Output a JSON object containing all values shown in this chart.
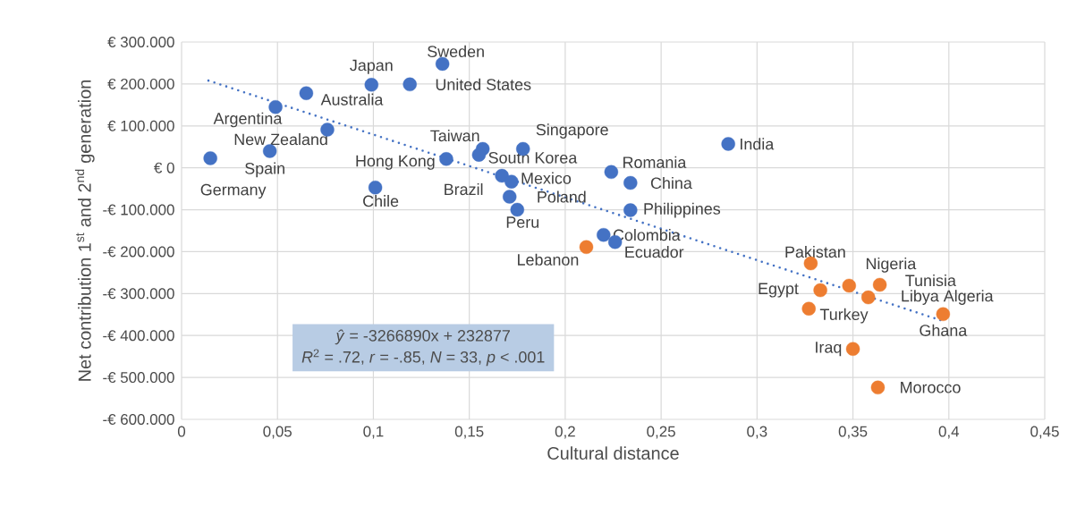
{
  "chart_data": {
    "type": "scatter",
    "xlabel": "Cultural distance",
    "ylabel": "Net contribution 1$^{st}$ and 2$^{nd}$ generation",
    "xlim": [
      0,
      0.45
    ],
    "ylim": [
      -600000,
      300000
    ],
    "xticks": [
      0,
      {
        "value": 0.05,
        "label": "0,05"
      },
      {
        "value": 0.1,
        "label": "0,1"
      },
      {
        "value": 0.15,
        "label": "0,15"
      },
      {
        "value": 0.2,
        "label": "0,2"
      },
      {
        "value": 0.25,
        "label": "0,25"
      },
      {
        "value": 0.3,
        "label": "0,3"
      },
      {
        "value": 0.35,
        "label": "0,35"
      },
      {
        "value": 0.4,
        "label": "0,4"
      },
      {
        "value": 0.45,
        "label": "0,45"
      }
    ],
    "yticks": [
      {
        "value": -600000,
        "label": "-€ 600.000"
      },
      {
        "value": -500000,
        "label": "-€ 500.000"
      },
      {
        "value": -400000,
        "label": "-€ 400.000"
      },
      {
        "value": -300000,
        "label": "-€ 300.000"
      },
      {
        "value": -200000,
        "label": "-€ 200.000"
      },
      {
        "value": -100000,
        "label": "-€ 100.000"
      },
      {
        "value": 0,
        "label": "€ 0"
      },
      {
        "value": 100000,
        "label": "€ 100.000"
      },
      {
        "value": 200000,
        "label": "€ 200.000"
      },
      {
        "value": 300000,
        "label": "€ 300.000"
      }
    ],
    "grid": true,
    "marker": "circle",
    "series": [
      {
        "color": "#4472c4",
        "x": [
          0.015,
          0.046,
          0.049,
          0.065,
          0.076,
          0.099,
          0.119,
          0.136,
          0.138,
          0.101,
          0.157,
          0.155,
          0.178,
          0.167,
          0.172,
          0.171,
          0.175,
          0.224,
          0.234,
          0.234,
          0.285,
          0.22,
          0.226
        ],
        "values": [
          23000,
          40000,
          145000,
          178000,
          91000,
          198000,
          199000,
          248000,
          21000,
          -47000,
          45000,
          31000,
          45000,
          -19000,
          -33000,
          -69000,
          -100000,
          -10000,
          -36000,
          -101000,
          57000,
          -160000,
          -177000
        ]
      },
      {
        "color": "#ed7d31",
        "x": [
          0.211,
          0.328,
          0.348,
          0.364,
          0.333,
          0.358,
          0.327,
          0.397,
          0.35,
          0.363
        ],
        "values": [
          -189000,
          -228000,
          -281000,
          -279000,
          -292000,
          -309000,
          -336000,
          -349000,
          -432000,
          -524000
        ]
      },
      {
        "type": "line",
        "color": "#4472c4",
        "line_style": "dotted",
        "marker": "none",
        "x": [
          0.014,
          0.396
        ],
        "values": [
          208000,
          -364000
        ]
      }
    ],
    "annotations": [
      {
        "text": "Spain",
        "x": 0.015,
        "y": 23000
      },
      {
        "text": "Germany",
        "x": 0.046,
        "y": 40000
      },
      {
        "text": "New Zealand",
        "x": 0.049,
        "y": 145000
      },
      {
        "text": "Australia",
        "x": 0.065,
        "y": 178000
      },
      {
        "text": "Argentina",
        "x": 0.076,
        "y": 91000
      },
      {
        "text": "Japan",
        "x": 0.099,
        "y": 198000
      },
      {
        "text": "United States",
        "x": 0.119,
        "y": 199000
      },
      {
        "text": "Sweden",
        "x": 0.136,
        "y": 248000
      },
      {
        "text": "Hong Kong",
        "x": 0.138,
        "y": 21000
      },
      {
        "text": "Chile",
        "x": 0.101,
        "y": -47000
      },
      {
        "text": "Taiwan",
        "x": 0.157,
        "y": 45000
      },
      {
        "text": "South Korea",
        "x": 0.155,
        "y": 31000
      },
      {
        "text": "Singapore",
        "x": 0.178,
        "y": 45000
      },
      {
        "text": "Brazil",
        "x": 0.167,
        "y": -19000
      },
      {
        "text": "Mexico",
        "x": 0.172,
        "y": -33000
      },
      {
        "text": "Poland",
        "x": 0.171,
        "y": -69000
      },
      {
        "text": "Peru",
        "x": 0.175,
        "y": -100000
      },
      {
        "text": "Romania",
        "x": 0.224,
        "y": -10000
      },
      {
        "text": "China",
        "x": 0.234,
        "y": -36000
      },
      {
        "text": "Philippines",
        "x": 0.234,
        "y": -101000
      },
      {
        "text": "India",
        "x": 0.285,
        "y": 57000
      },
      {
        "text": "Colombia",
        "x": 0.22,
        "y": -160000
      },
      {
        "text": "Ecuador",
        "x": 0.226,
        "y": -177000
      },
      {
        "text": "Lebanon",
        "x": 0.211,
        "y": -189000
      },
      {
        "text": "Pakistan",
        "x": 0.328,
        "y": -228000
      },
      {
        "text": "Nigeria",
        "x": 0.348,
        "y": -281000
      },
      {
        "text": "Tunisia",
        "x": 0.364,
        "y": -279000
      },
      {
        "text": "Egypt",
        "x": 0.333,
        "y": -292000
      },
      {
        "text": "Libya Algeria",
        "x": 0.358,
        "y": -309000
      },
      {
        "text": "Turkey",
        "x": 0.327,
        "y": -336000
      },
      {
        "text": "Ghana",
        "x": 0.397,
        "y": -349000
      },
      {
        "text": "Iraq",
        "x": 0.35,
        "y": -432000
      },
      {
        "text": "Morocco",
        "x": 0.363,
        "y": -524000
      },
      "*ŷ* = -3266890x + 232877",
      "*R*$^{2}$ = .72, *r* = -.85, *N* = 33, *p* < .001"
    ]
  }
}
